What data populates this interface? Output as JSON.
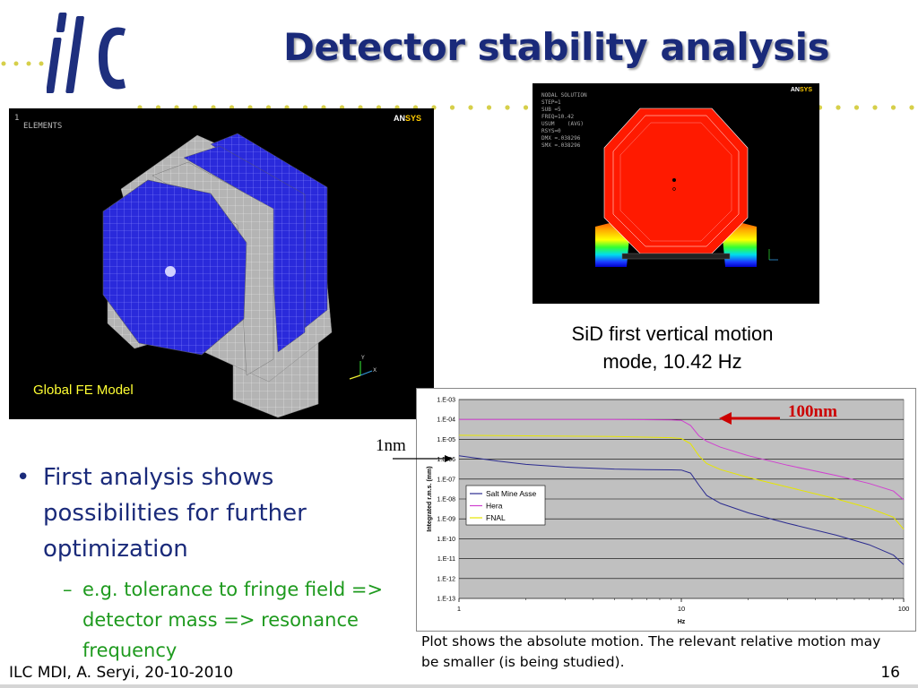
{
  "slide": {
    "title": "Detector stability analysis",
    "footer_left": "ILC MDI, A. Seryi, 20-10-2010",
    "page_number": "16",
    "logo_text": "ilc",
    "accent_color": "#1a2a7a",
    "sub_bullet_color": "#1e9a1e"
  },
  "fe_model": {
    "window_number": "1",
    "elements_label": "ELEMENTS",
    "ansys_logo": "ANSYS",
    "caption": "Global FE Model"
  },
  "modal": {
    "solution_text": "NODAL SOLUTION\nSTEP=1\nSUB =5\nFREQ=10.42\nUSUM    (AVG)\nRSYS=0\nDMX =.038296\nSMX =.038296",
    "ansys_logo": "ANSYS",
    "caption_line1": "SiD first vertical motion",
    "caption_line2": "mode, 10.42 Hz"
  },
  "bullets": {
    "main": "First analysis shows possibilities for further optimization",
    "sub": "e.g. tolerance to fringe field => detector mass => resonance frequency"
  },
  "annotations": {
    "label_100nm": "100nm",
    "label_1nm": "1nm",
    "arrow_color_100nm": "#cc0000"
  },
  "plot_note": "Plot shows the absolute motion. The relevant relative motion may be smaller (is being studied).",
  "chart_data": {
    "type": "line",
    "xlabel": "Hz",
    "ylabel": "Integrated r.m.s. (mm)",
    "x_scale": "log",
    "y_scale": "log",
    "xlim": [
      1,
      100
    ],
    "ylim": [
      1e-13,
      0.001
    ],
    "x_ticks": [
      "1",
      "10",
      "100"
    ],
    "y_ticks": [
      "1.E-03",
      "1.E-04",
      "1.E-05",
      "1.E-06",
      "1.E-07",
      "1.E-08",
      "1.E-09",
      "1.E-10",
      "1.E-11",
      "1.E-12",
      "1.E-13"
    ],
    "grid": true,
    "legend_position": "middle-left",
    "series": [
      {
        "name": "Salt Mine Asse",
        "color": "#2b2b8f",
        "x": [
          1,
          1.5,
          2,
          3,
          5,
          7,
          9,
          10,
          11,
          12,
          13,
          15,
          20,
          30,
          50,
          70,
          90,
          100
        ],
        "y": [
          1.5e-06,
          8e-07,
          5.5e-07,
          4e-07,
          3.2e-07,
          3e-07,
          2.9e-07,
          2.85e-07,
          2e-07,
          5e-08,
          1.5e-08,
          6e-09,
          2e-09,
          6e-10,
          1.5e-10,
          5e-11,
          1.5e-11,
          5e-12
        ]
      },
      {
        "name": "Hera",
        "color": "#d040d0",
        "x": [
          1,
          2,
          5,
          9,
          10,
          11,
          12,
          13,
          15,
          20,
          30,
          50,
          70,
          90,
          100
        ],
        "y": [
          0.0001,
          0.0001,
          0.0001,
          9.5e-05,
          9e-05,
          5e-05,
          1.5e-05,
          8e-06,
          4e-06,
          1.5e-06,
          5e-07,
          1.5e-07,
          6e-08,
          2.5e-08,
          9e-09
        ]
      },
      {
        "name": "FNAL",
        "color": "#e6e600",
        "x": [
          1,
          2,
          5,
          9,
          10,
          11,
          12,
          13,
          15,
          20,
          30,
          50,
          70,
          90,
          100
        ],
        "y": [
          1.6e-05,
          1.5e-05,
          1.4e-05,
          1.2e-05,
          1.1e-05,
          6e-06,
          1.5e-06,
          6e-07,
          3e-07,
          1.2e-07,
          4e-08,
          1e-08,
          3.5e-09,
          1.2e-09,
          3e-10
        ]
      }
    ]
  }
}
